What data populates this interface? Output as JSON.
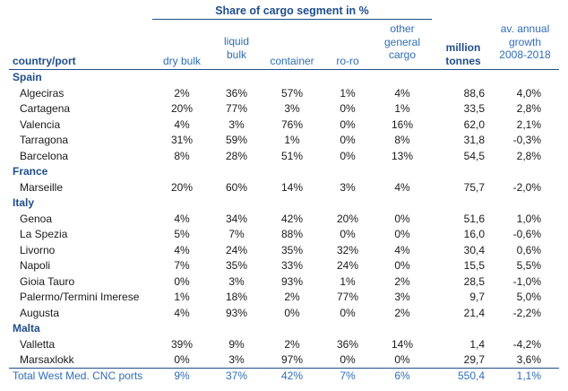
{
  "header": {
    "group": "Share of cargo segment in %",
    "country_port": "country/port",
    "dry_bulk": "dry bulk",
    "liquid_bulk": [
      "liquid",
      "bulk"
    ],
    "container": "container",
    "ro_ro": "ro-ro",
    "other_general_cargo": [
      "other",
      "general",
      "cargo"
    ],
    "million_tonnes": [
      "million",
      "tonnes"
    ],
    "growth": [
      "av. annual",
      "growth",
      "2008-2018"
    ]
  },
  "rows": [
    {
      "country": "Spain"
    },
    {
      "port": "Algeciras",
      "dry": "2%",
      "liquid": "36%",
      "container": "57%",
      "roro": "1%",
      "other": "4%",
      "tonnes": "88,6",
      "growth": "4,0%"
    },
    {
      "port": "Cartagena",
      "dry": "20%",
      "liquid": "77%",
      "container": "3%",
      "roro": "0%",
      "other": "1%",
      "tonnes": "33,5",
      "growth": "2,8%"
    },
    {
      "port": "Valencia",
      "dry": "4%",
      "liquid": "3%",
      "container": "76%",
      "roro": "0%",
      "other": "16%",
      "tonnes": "62,0",
      "growth": "2,1%"
    },
    {
      "port": "Tarragona",
      "dry": "31%",
      "liquid": "59%",
      "container": "1%",
      "roro": "0%",
      "other": "8%",
      "tonnes": "31,8",
      "growth": "-0,3%"
    },
    {
      "port": "Barcelona",
      "dry": "8%",
      "liquid": "28%",
      "container": "51%",
      "roro": "0%",
      "other": "13%",
      "tonnes": "54,5",
      "growth": "2,8%"
    },
    {
      "country": "France"
    },
    {
      "port": "Marseille",
      "dry": "20%",
      "liquid": "60%",
      "container": "14%",
      "roro": "3%",
      "other": "4%",
      "tonnes": "75,7",
      "growth": "-2,0%"
    },
    {
      "country": "Italy"
    },
    {
      "port": "Genoa",
      "dry": "4%",
      "liquid": "34%",
      "container": "42%",
      "roro": "20%",
      "other": "0%",
      "tonnes": "51,6",
      "growth": "1,0%"
    },
    {
      "port": "La Spezia",
      "dry": "5%",
      "liquid": "7%",
      "container": "88%",
      "roro": "0%",
      "other": "0%",
      "tonnes": "16,0",
      "growth": "-0,6%"
    },
    {
      "port": "Livorno",
      "dry": "4%",
      "liquid": "24%",
      "container": "35%",
      "roro": "32%",
      "other": "4%",
      "tonnes": "30,4",
      "growth": "0,6%"
    },
    {
      "port": "Napoli",
      "dry": "7%",
      "liquid": "35%",
      "container": "33%",
      "roro": "24%",
      "other": "0%",
      "tonnes": "15,5",
      "growth": "5,5%"
    },
    {
      "port": "Gioia Tauro",
      "dry": "0%",
      "liquid": "3%",
      "container": "93%",
      "roro": "1%",
      "other": "2%",
      "tonnes": "28,5",
      "growth": "-1,0%"
    },
    {
      "port": "Palermo/Termini Imerese",
      "dry": "1%",
      "liquid": "18%",
      "container": "2%",
      "roro": "77%",
      "other": "3%",
      "tonnes": "9,7",
      "growth": "5,0%"
    },
    {
      "port": "Augusta",
      "dry": "4%",
      "liquid": "93%",
      "container": "0%",
      "roro": "0%",
      "other": "2%",
      "tonnes": "21,4",
      "growth": "-2,2%"
    },
    {
      "country": "Malta"
    },
    {
      "port": "Valletta",
      "dry": "39%",
      "liquid": "9%",
      "container": "2%",
      "roro": "36%",
      "other": "14%",
      "tonnes": "1,4",
      "growth": "-4,2%"
    },
    {
      "port": "Marsaxlokk",
      "dry": "0%",
      "liquid": "3%",
      "container": "97%",
      "roro": "0%",
      "other": "0%",
      "tonnes": "29,7",
      "growth": "3,6%"
    }
  ],
  "total": {
    "label": "Total West Med. CNC ports",
    "dry": "9%",
    "liquid": "37%",
    "container": "42%",
    "roro": "7%",
    "other": "6%",
    "tonnes": "550,4",
    "growth": "1,1%"
  }
}
